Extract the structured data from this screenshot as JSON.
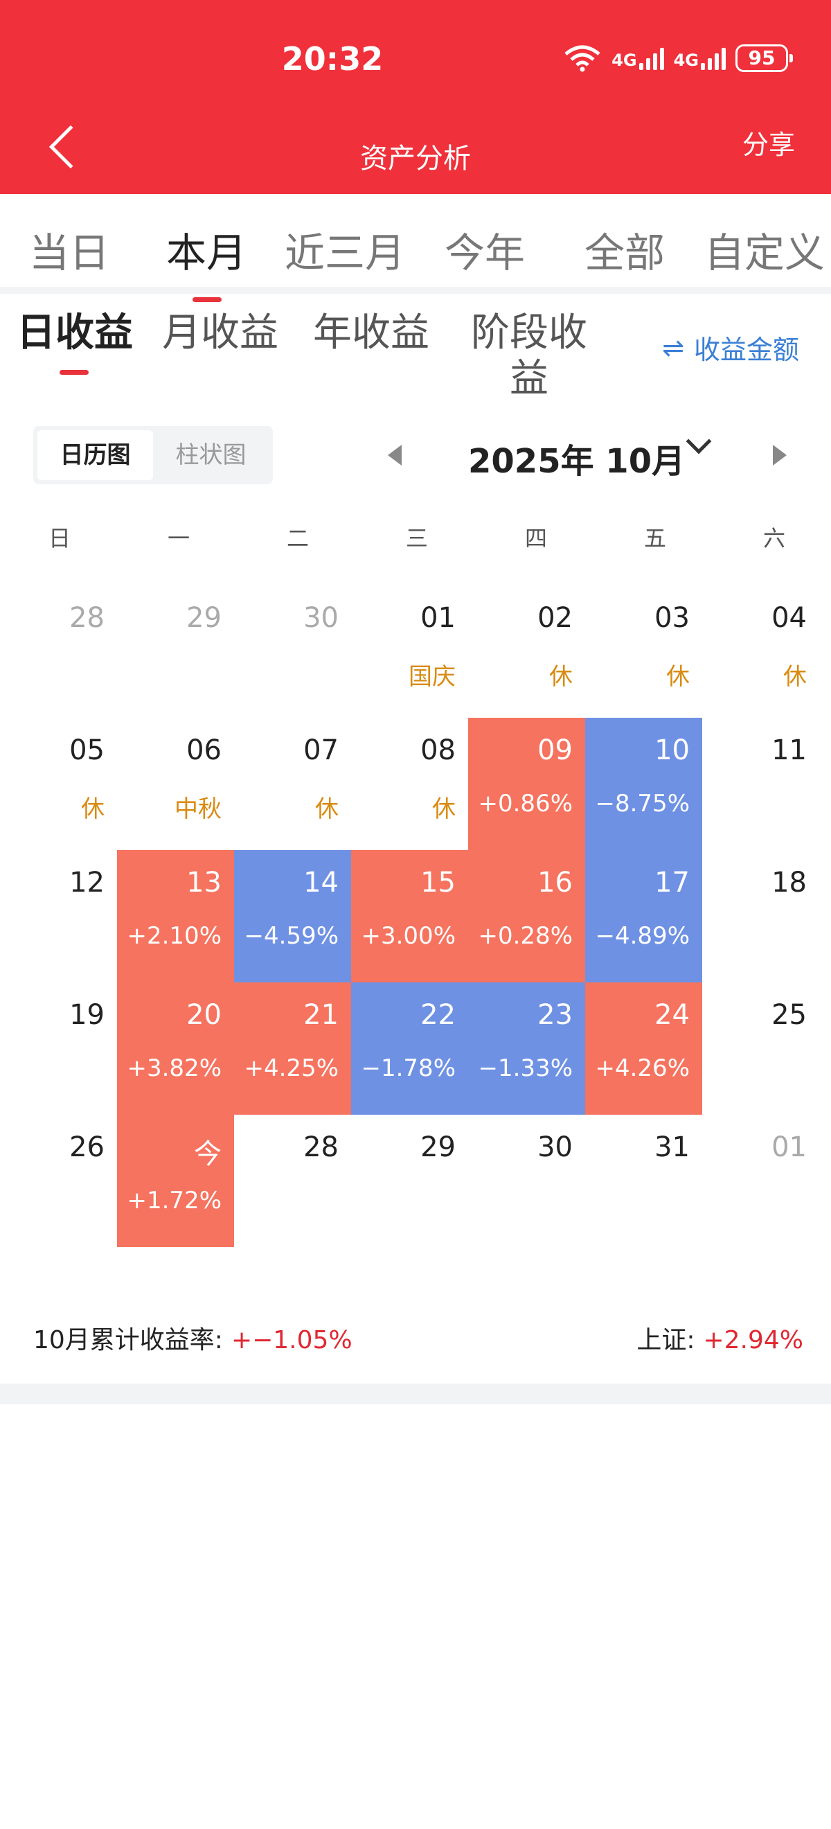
{
  "status": {
    "time": "20:32",
    "signal1": "4G",
    "signal2": "4G",
    "battery": "95"
  },
  "header": {
    "title": "资产分析",
    "share_label": "分享"
  },
  "period_tabs": [
    "当日",
    "本月",
    "近三月",
    "今年",
    "全部",
    "自定义"
  ],
  "sub_tabs": [
    "日收益",
    "月收益",
    "年收益",
    "阶段收益"
  ],
  "toggle_amount": {
    "icon": "⇌",
    "label": "收益金额"
  },
  "view_toggle": [
    "日历图",
    "柱状图"
  ],
  "month_label": "2025年 10月",
  "weekdays": [
    "日",
    "一",
    "二",
    "三",
    "四",
    "五",
    "六"
  ],
  "calendar": [
    [
      {
        "d": "28",
        "dim": true
      },
      {
        "d": "29",
        "dim": true
      },
      {
        "d": "30",
        "dim": true
      },
      {
        "d": "01",
        "sub": "国庆",
        "kind": "holiday"
      },
      {
        "d": "02",
        "sub": "休",
        "kind": "holiday"
      },
      {
        "d": "03",
        "sub": "休",
        "kind": "holiday"
      },
      {
        "d": "04",
        "sub": "休",
        "kind": "holiday"
      }
    ],
    [
      {
        "d": "05",
        "sub": "休",
        "kind": "holiday"
      },
      {
        "d": "06",
        "sub": "中秋",
        "kind": "holiday"
      },
      {
        "d": "07",
        "sub": "休",
        "kind": "holiday"
      },
      {
        "d": "08",
        "sub": "休",
        "kind": "holiday"
      },
      {
        "d": "09",
        "sub": "+0.86%",
        "kind": "up"
      },
      {
        "d": "10",
        "sub": "−8.75%",
        "kind": "down"
      },
      {
        "d": "11"
      }
    ],
    [
      {
        "d": "12"
      },
      {
        "d": "13",
        "sub": "+2.10%",
        "kind": "up"
      },
      {
        "d": "14",
        "sub": "−4.59%",
        "kind": "down"
      },
      {
        "d": "15",
        "sub": "+3.00%",
        "kind": "up"
      },
      {
        "d": "16",
        "sub": "+0.28%",
        "kind": "up"
      },
      {
        "d": "17",
        "sub": "−4.89%",
        "kind": "down"
      },
      {
        "d": "18"
      }
    ],
    [
      {
        "d": "19"
      },
      {
        "d": "20",
        "sub": "+3.82%",
        "kind": "up"
      },
      {
        "d": "21",
        "sub": "+4.25%",
        "kind": "up"
      },
      {
        "d": "22",
        "sub": "−1.78%",
        "kind": "down"
      },
      {
        "d": "23",
        "sub": "−1.33%",
        "kind": "down"
      },
      {
        "d": "24",
        "sub": "+4.26%",
        "kind": "up"
      },
      {
        "d": "25"
      }
    ],
    [
      {
        "d": "26"
      },
      {
        "d": "今",
        "sub": "+1.72%",
        "kind": "up"
      },
      {
        "d": "28"
      },
      {
        "d": "29"
      },
      {
        "d": "30"
      },
      {
        "d": "31"
      },
      {
        "d": "01",
        "dim": true
      }
    ]
  ],
  "summary": {
    "label": "10月累计收益率:",
    "value": "+−1.05%",
    "index_label": "上证:",
    "index_value": "+2.94%"
  },
  "colors": {
    "header": "#f0303a",
    "up": "#f5735f",
    "down": "#6e91e3",
    "holiday": "#d98b12",
    "link": "#3a7fd5"
  }
}
